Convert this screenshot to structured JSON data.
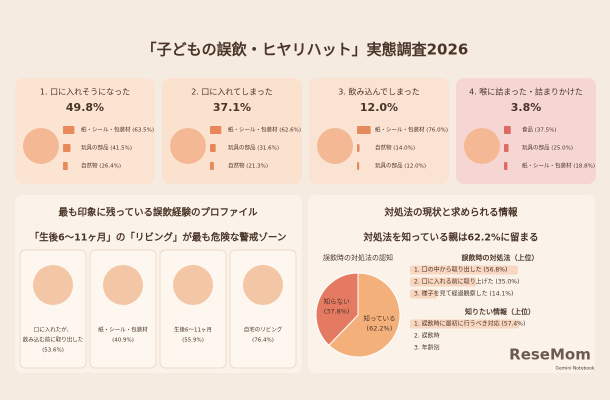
{
  "title": "「子どもの誤飲・ヒヤリハット」実態調査2026",
  "cards": [
    {
      "heading": "1. 口に入れそうになった",
      "rate": "49.8%",
      "items": [
        {
          "label": "紙・シール・包装材 (63.5%)",
          "value": 63.5
        },
        {
          "label": "玩具の部品 (41.5%)",
          "value": 41.5
        },
        {
          "label": "自然物 (26.4%)",
          "value": 26.4
        }
      ]
    },
    {
      "heading": "2. 口に入れてしまった",
      "rate": "37.1%",
      "items": [
        {
          "label": "紙・シール・包装材 (62.6%)",
          "value": 62.6
        },
        {
          "label": "玩具の部品 (31.6%)",
          "value": 31.6
        },
        {
          "label": "自然物 (21.3%)",
          "value": 21.3
        }
      ]
    },
    {
      "heading": "3. 飲み込んでしまった",
      "rate": "12.0%",
      "items": [
        {
          "label": "紙・シール・包装材 (76.0%)",
          "value": 76.0
        },
        {
          "label": "自然物 (14.0%)",
          "value": 14.0
        },
        {
          "label": "玩具の部品 (12.0%)",
          "value": 12.0
        }
      ]
    },
    {
      "heading": "4. 喉に詰まった・詰まりかけた",
      "rate": "3.8%",
      "items": [
        {
          "label": "食品 (37.5%)",
          "value": 37.5
        },
        {
          "label": "玩具の部品 (25.0%)",
          "value": 25.0
        },
        {
          "label": "紙・シール・包装材 (18.8%)",
          "value": 18.8
        }
      ]
    }
  ],
  "profile": {
    "heading": "最も印象に残っている誤飲経験のプロファイル",
    "subtitle": "「生後6～11ヶ月」の「リビング」が最も危険な警戒ゾーン",
    "tiles": [
      {
        "lines": [
          "口に入れたが、",
          "飲み込む前に取り出した",
          "(53.6%)"
        ]
      },
      {
        "lines": [
          "紙・シール・包装材",
          "(40.9%)"
        ]
      },
      {
        "lines": [
          "生後6～11ヶ月",
          "(55.9%)"
        ]
      },
      {
        "lines": [
          "自宅のリビング",
          "(76.4%)"
        ]
      }
    ]
  },
  "response": {
    "heading": "対処法の現状と求められる情報",
    "subtitle": "対処法を知っている親は62.2%に留まる",
    "pie": {
      "title": "誤飲時の対処法の認知",
      "slices": [
        {
          "label": "知らない",
          "pct": "(37.8%)",
          "value": 37.8
        },
        {
          "label": "知っている",
          "pct": "(62.2%)",
          "value": 62.2
        }
      ]
    },
    "lists": [
      {
        "heading": "誤飲時の対処法（上位）",
        "items": [
          {
            "label": "1. 口の中から取り出した (56.8%)",
            "value": 56.8
          },
          {
            "label": "2. 口に入れる前に取り上げた (35.0%)",
            "value": 35.0
          },
          {
            "label": "3. 様子を見て経過観察した (14.1%)",
            "value": 14.1
          }
        ]
      },
      {
        "heading": "知りたい情報（上位）",
        "items": [
          {
            "label": "1. 誤飲時に最初に行うべき対応 (57.4%)",
            "value": 57.4
          },
          {
            "label": "2. 誤飲時",
            "value": null
          },
          {
            "label": "3. 年齢別",
            "value": null
          }
        ]
      }
    ]
  },
  "watermark": "ReseMom",
  "credit": "Gemini Notebook"
}
